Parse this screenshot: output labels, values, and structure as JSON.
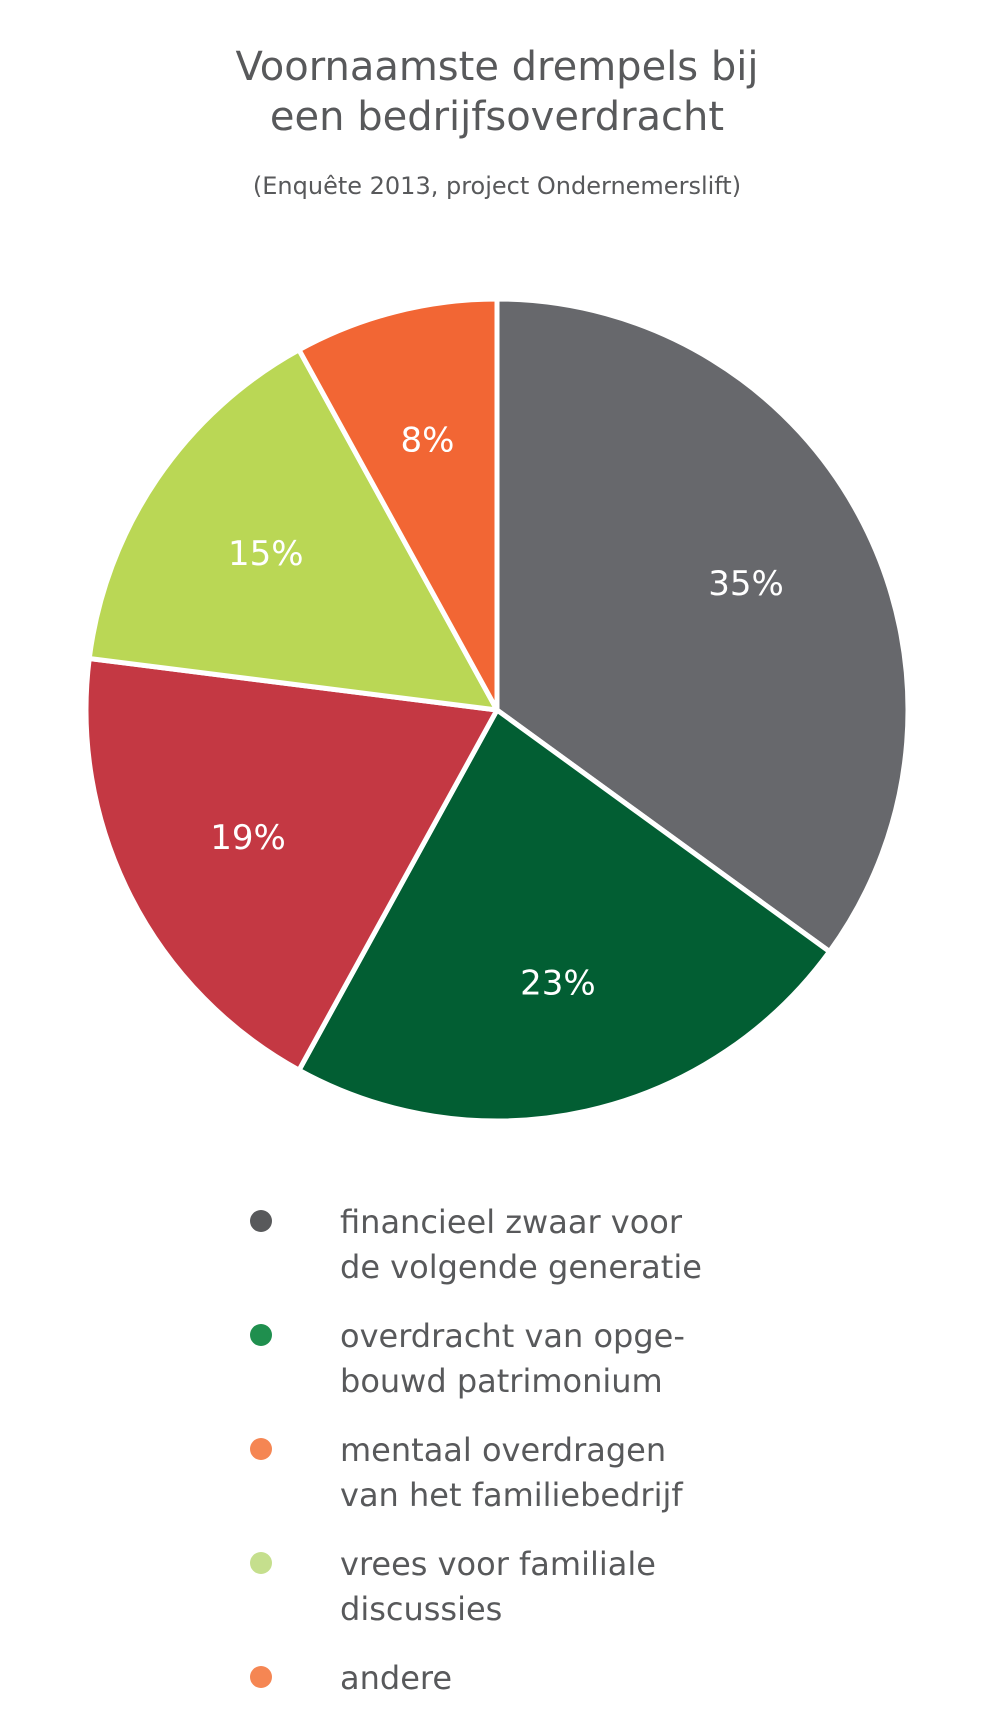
{
  "chart_data": {
    "type": "pie",
    "title": "Voornaamste drempels bij\neen bedrijfsoverdracht",
    "subtitle": "(Enquête 2013, project Ondernemerslift)",
    "slices": [
      {
        "value": 35,
        "label": "35%",
        "color": "#67686c"
      },
      {
        "value": 23,
        "label": "23%",
        "color": "#025e33"
      },
      {
        "value": 19,
        "label": "19%",
        "color": "#c43843"
      },
      {
        "value": 15,
        "label": "15%",
        "color": "#bad755"
      },
      {
        "value": 8,
        "label": "8%",
        "color": "#f26634"
      }
    ],
    "legend": [
      {
        "label": "financieel zwaar voor\nde volgende generatie",
        "color": "#58595b"
      },
      {
        "label": "overdracht van opge-\nbouwd patrimonium",
        "color": "#1f8f4e"
      },
      {
        "label": "mentaal overdragen\nvan het familiebedrijf",
        "color": "#f58653"
      },
      {
        "label": "vrees voor familiale\ndiscussies",
        "color": "#c5df8d"
      },
      {
        "label": "andere",
        "color": "#f58653"
      }
    ],
    "legend_placement": "bottom"
  }
}
